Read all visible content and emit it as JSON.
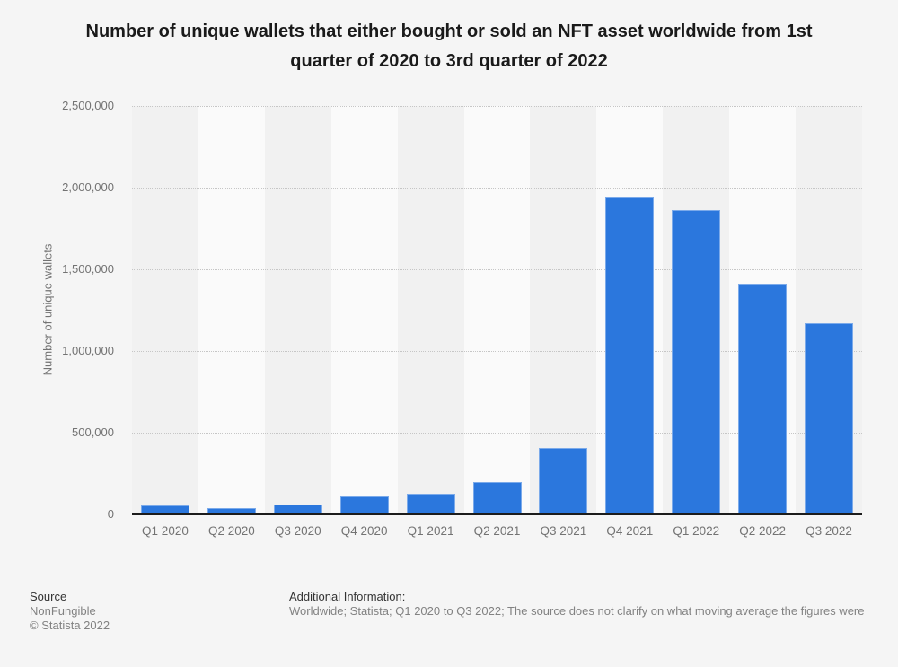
{
  "page": {
    "background": "#f5f5f5"
  },
  "chart_data": {
    "type": "bar",
    "title": "Number of unique wallets that either bought or sold an NFT asset worldwide from 1st quarter of 2020 to 3rd quarter of 2022",
    "xlabel": "",
    "ylabel": "Number of unique wallets",
    "categories": [
      "Q1 2020",
      "Q2 2020",
      "Q3 2020",
      "Q4 2020",
      "Q1 2021",
      "Q2 2021",
      "Q3 2021",
      "Q4 2021",
      "Q1 2022",
      "Q2 2022",
      "Q3 2022"
    ],
    "values": [
      56000,
      36000,
      60000,
      112000,
      126000,
      200000,
      405000,
      1940000,
      1865000,
      1410000,
      1170000
    ],
    "ylim": [
      0,
      2500000
    ],
    "y_ticks": [
      {
        "value": 2500000,
        "label": "2,500,000"
      },
      {
        "value": 2000000,
        "label": "2,000,000"
      },
      {
        "value": 1500000,
        "label": "1,500,000"
      },
      {
        "value": 1000000,
        "label": "1,000,000"
      },
      {
        "value": 500000,
        "label": "500,000"
      },
      {
        "value": 0,
        "label": "0"
      }
    ],
    "grid": "horizontal-dotted",
    "legend": "none",
    "bar_color": "#2b77dd",
    "stripe_colors": [
      "#f1f1f1",
      "#fafafa"
    ]
  },
  "footer": {
    "source_label": "Source",
    "source_value": "NonFungible",
    "copyright": "© Statista 2022",
    "additional_label": "Additional Information:",
    "additional_value": "Worldwide; Statista; Q1 2020 to Q3 2022; The source does not clarify on what moving average the figures were"
  }
}
